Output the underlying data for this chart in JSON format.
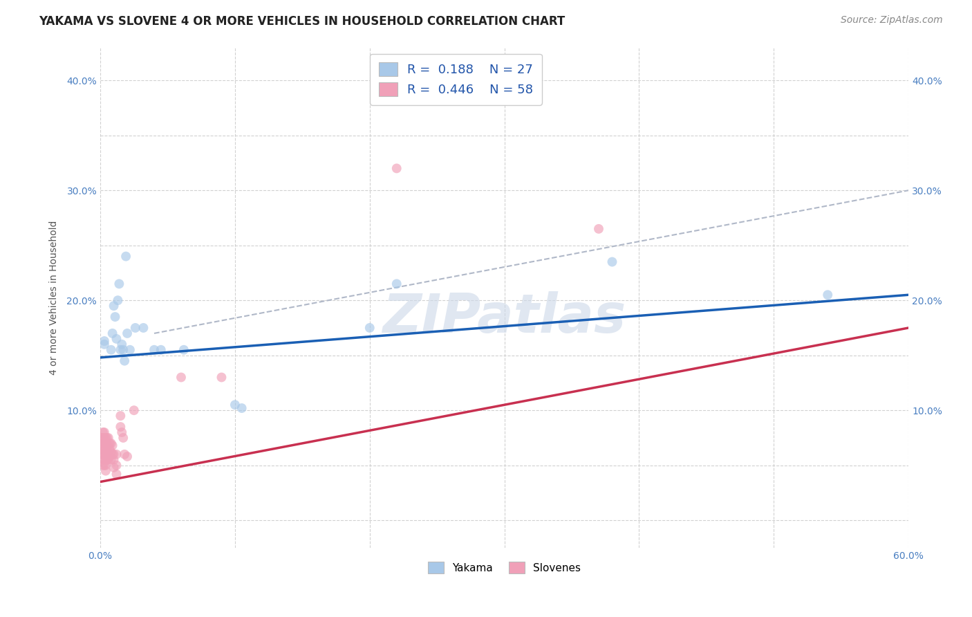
{
  "title": "YAKAMA VS SLOVENE 4 OR MORE VEHICLES IN HOUSEHOLD CORRELATION CHART",
  "source": "Source: ZipAtlas.com",
  "ylabel": "4 or more Vehicles in Household",
  "xlim": [
    0.0,
    0.6
  ],
  "ylim": [
    -0.025,
    0.43
  ],
  "background_color": "#ffffff",
  "grid_color": "#cccccc",
  "yakama_color": "#a8c8e8",
  "slovene_color": "#f0a0b8",
  "trend_yakama_color": "#1a5fb4",
  "trend_slovene_color": "#c83050",
  "trend_dashed_color": "#b0b8c8",
  "watermark": "ZIPatlas",
  "yakama_R": "0.188",
  "yakama_N": "27",
  "slovene_R": "0.446",
  "slovene_N": "58",
  "title_fontsize": 12,
  "axis_label_fontsize": 10,
  "tick_fontsize": 10,
  "legend_fontsize": 13,
  "source_fontsize": 10,
  "marker_size": 100,
  "marker_alpha": 0.65,
  "yakama_points": [
    [
      0.003,
      0.16
    ],
    [
      0.003,
      0.163
    ],
    [
      0.008,
      0.155
    ],
    [
      0.009,
      0.17
    ],
    [
      0.01,
      0.195
    ],
    [
      0.011,
      0.185
    ],
    [
      0.012,
      0.165
    ],
    [
      0.013,
      0.2
    ],
    [
      0.014,
      0.215
    ],
    [
      0.015,
      0.155
    ],
    [
      0.016,
      0.16
    ],
    [
      0.017,
      0.155
    ],
    [
      0.018,
      0.145
    ],
    [
      0.019,
      0.24
    ],
    [
      0.02,
      0.17
    ],
    [
      0.022,
      0.155
    ],
    [
      0.026,
      0.175
    ],
    [
      0.032,
      0.175
    ],
    [
      0.04,
      0.155
    ],
    [
      0.045,
      0.155
    ],
    [
      0.062,
      0.155
    ],
    [
      0.1,
      0.105
    ],
    [
      0.105,
      0.102
    ],
    [
      0.2,
      0.175
    ],
    [
      0.22,
      0.215
    ],
    [
      0.38,
      0.235
    ],
    [
      0.54,
      0.205
    ]
  ],
  "slovene_points": [
    [
      0.001,
      0.075
    ],
    [
      0.001,
      0.07
    ],
    [
      0.001,
      0.065
    ],
    [
      0.001,
      0.06
    ],
    [
      0.002,
      0.08
    ],
    [
      0.002,
      0.075
    ],
    [
      0.002,
      0.07
    ],
    [
      0.002,
      0.065
    ],
    [
      0.002,
      0.06
    ],
    [
      0.002,
      0.055
    ],
    [
      0.002,
      0.05
    ],
    [
      0.003,
      0.08
    ],
    [
      0.003,
      0.075
    ],
    [
      0.003,
      0.07
    ],
    [
      0.003,
      0.065
    ],
    [
      0.003,
      0.06
    ],
    [
      0.003,
      0.055
    ],
    [
      0.003,
      0.05
    ],
    [
      0.004,
      0.075
    ],
    [
      0.004,
      0.07
    ],
    [
      0.004,
      0.065
    ],
    [
      0.004,
      0.06
    ],
    [
      0.004,
      0.055
    ],
    [
      0.004,
      0.05
    ],
    [
      0.004,
      0.045
    ],
    [
      0.005,
      0.075
    ],
    [
      0.005,
      0.068
    ],
    [
      0.005,
      0.062
    ],
    [
      0.005,
      0.055
    ],
    [
      0.006,
      0.075
    ],
    [
      0.006,
      0.068
    ],
    [
      0.006,
      0.06
    ],
    [
      0.006,
      0.055
    ],
    [
      0.007,
      0.07
    ],
    [
      0.007,
      0.065
    ],
    [
      0.007,
      0.058
    ],
    [
      0.008,
      0.07
    ],
    [
      0.008,
      0.062
    ],
    [
      0.008,
      0.055
    ],
    [
      0.009,
      0.068
    ],
    [
      0.009,
      0.06
    ],
    [
      0.01,
      0.06
    ],
    [
      0.01,
      0.055
    ],
    [
      0.01,
      0.048
    ],
    [
      0.012,
      0.06
    ],
    [
      0.012,
      0.05
    ],
    [
      0.012,
      0.042
    ],
    [
      0.015,
      0.095
    ],
    [
      0.015,
      0.085
    ],
    [
      0.016,
      0.08
    ],
    [
      0.017,
      0.075
    ],
    [
      0.018,
      0.06
    ],
    [
      0.02,
      0.058
    ],
    [
      0.025,
      0.1
    ],
    [
      0.06,
      0.13
    ],
    [
      0.09,
      0.13
    ],
    [
      0.22,
      0.32
    ],
    [
      0.37,
      0.265
    ]
  ],
  "yakama_trend": [
    0.0,
    0.6,
    0.148,
    0.205
  ],
  "slovene_trend": [
    0.0,
    0.6,
    0.035,
    0.175
  ],
  "dashed_line": [
    0.04,
    0.6,
    0.17,
    0.3
  ]
}
